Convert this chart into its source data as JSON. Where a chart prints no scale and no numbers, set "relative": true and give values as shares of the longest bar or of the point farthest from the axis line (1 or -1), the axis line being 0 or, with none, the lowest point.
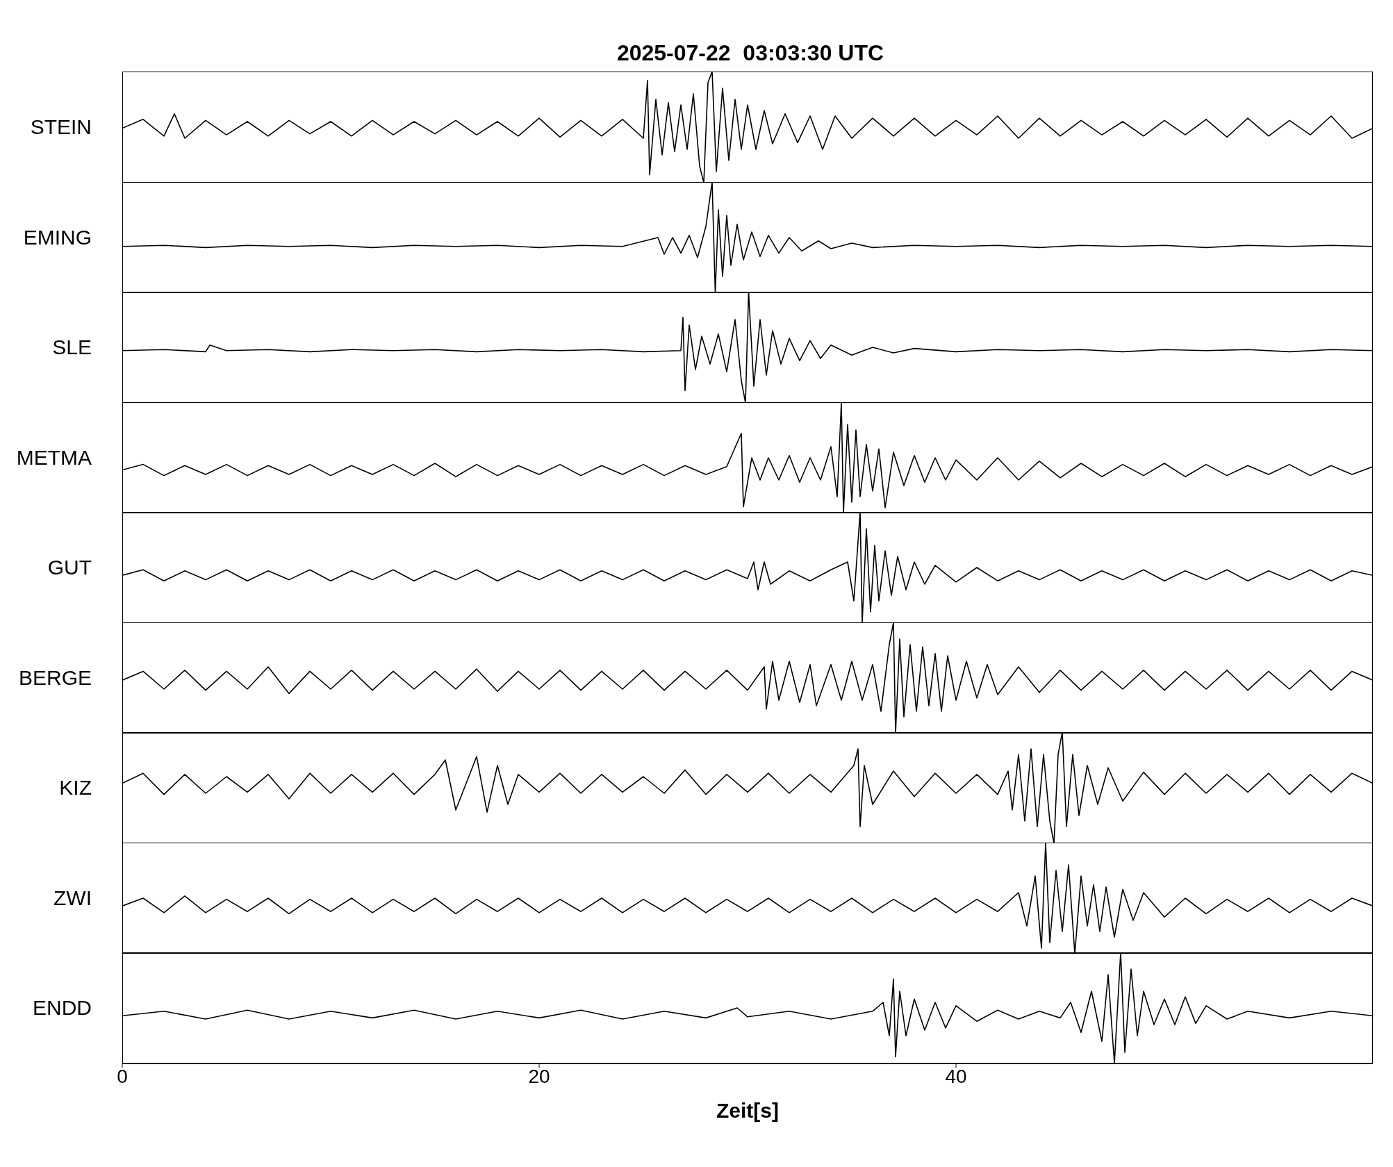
{
  "chart_data": [
    {
      "type": "line",
      "title": "2025-07-22  03:03:30 UTC",
      "ylabel": "STEIN",
      "relative": true,
      "color": "#000000",
      "xlim": [
        0,
        60
      ],
      "xticks": [
        0,
        20,
        40
      ],
      "tick_labels": false,
      "x": [
        0,
        1,
        2,
        2.5,
        3,
        4,
        5,
        6,
        7,
        8,
        9,
        10,
        11,
        12,
        13,
        14,
        15,
        16,
        17,
        18,
        19,
        20,
        21,
        22,
        23,
        24,
        25,
        25.2,
        25.3,
        25.6,
        25.9,
        26.2,
        26.5,
        26.8,
        27.1,
        27.4,
        27.7,
        27.9,
        28.1,
        28.3,
        28.5,
        28.8,
        29.1,
        29.4,
        29.7,
        30,
        30.4,
        30.8,
        31.2,
        31.8,
        32.4,
        33,
        33.6,
        34.2,
        35,
        36,
        37,
        38,
        39,
        40,
        41,
        42,
        43,
        44,
        45,
        46,
        47,
        48,
        49,
        50,
        51,
        52,
        53,
        54,
        55,
        56,
        57,
        58,
        59,
        60
      ],
      "values": [
        0.49,
        0.57,
        0.42,
        0.62,
        0.4,
        0.56,
        0.43,
        0.55,
        0.42,
        0.56,
        0.44,
        0.55,
        0.42,
        0.56,
        0.43,
        0.55,
        0.44,
        0.56,
        0.43,
        0.55,
        0.42,
        0.58,
        0.41,
        0.56,
        0.42,
        0.57,
        0.4,
        0.92,
        0.07,
        0.75,
        0.25,
        0.72,
        0.28,
        0.7,
        0.3,
        0.8,
        0.15,
        0,
        0.9,
        1,
        0.1,
        0.85,
        0.2,
        0.75,
        0.3,
        0.7,
        0.3,
        0.65,
        0.35,
        0.62,
        0.36,
        0.6,
        0.3,
        0.6,
        0.4,
        0.58,
        0.42,
        0.58,
        0.42,
        0.56,
        0.43,
        0.6,
        0.4,
        0.58,
        0.42,
        0.56,
        0.43,
        0.55,
        0.42,
        0.56,
        0.43,
        0.57,
        0.41,
        0.58,
        0.42,
        0.56,
        0.43,
        0.6,
        0.4,
        0.49
      ]
    },
    {
      "type": "line",
      "ylabel": "EMING",
      "relative": true,
      "color": "#000000",
      "xlim": [
        0,
        60
      ],
      "xticks": [
        0,
        20,
        40
      ],
      "tick_labels": false,
      "x": [
        0,
        2,
        4,
        6,
        8,
        10,
        12,
        14,
        16,
        18,
        20,
        22,
        24,
        25.7,
        26,
        26.4,
        26.8,
        27.2,
        27.6,
        28,
        28.3,
        28.45,
        28.6,
        28.8,
        29,
        29.2,
        29.5,
        29.8,
        30.2,
        30.6,
        31,
        31.5,
        32,
        32.6,
        33.4,
        34,
        35,
        36,
        38,
        40,
        42,
        44,
        46,
        48,
        50,
        52,
        54,
        56,
        58,
        60
      ],
      "values": [
        0.42,
        0.43,
        0.41,
        0.43,
        0.42,
        0.43,
        0.41,
        0.43,
        0.42,
        0.43,
        0.41,
        0.43,
        0.42,
        0.5,
        0.35,
        0.5,
        0.36,
        0.52,
        0.32,
        0.6,
        1,
        0,
        0.75,
        0.15,
        0.7,
        0.25,
        0.62,
        0.3,
        0.55,
        0.33,
        0.52,
        0.36,
        0.5,
        0.38,
        0.47,
        0.4,
        0.45,
        0.41,
        0.43,
        0.42,
        0.43,
        0.41,
        0.43,
        0.42,
        0.43,
        0.41,
        0.43,
        0.42,
        0.43,
        0.42
      ]
    },
    {
      "type": "line",
      "ylabel": "SLE",
      "relative": true,
      "color": "#000000",
      "xlim": [
        0,
        60
      ],
      "xticks": [
        0,
        20,
        40
      ],
      "tick_labels": false,
      "x": [
        0,
        2,
        4,
        4.2,
        5,
        7,
        9,
        11,
        13,
        15,
        17,
        19,
        21,
        23,
        25,
        26.8,
        26.9,
        27,
        27.2,
        27.5,
        27.8,
        28.2,
        28.6,
        29,
        29.4,
        29.7,
        29.9,
        30.05,
        30.3,
        30.6,
        30.9,
        31.2,
        31.6,
        32,
        32.5,
        33,
        33.5,
        34,
        35,
        36,
        37,
        38,
        40,
        42,
        44,
        46,
        48,
        50,
        52,
        54,
        56,
        58,
        60
      ],
      "values": [
        0.47,
        0.48,
        0.46,
        0.52,
        0.47,
        0.48,
        0.46,
        0.48,
        0.47,
        0.48,
        0.46,
        0.48,
        0.47,
        0.48,
        0.46,
        0.47,
        0.77,
        0.11,
        0.7,
        0.3,
        0.6,
        0.35,
        0.62,
        0.28,
        0.75,
        0.2,
        0,
        1,
        0.15,
        0.75,
        0.25,
        0.65,
        0.35,
        0.58,
        0.38,
        0.56,
        0.4,
        0.52,
        0.43,
        0.5,
        0.45,
        0.49,
        0.46,
        0.48,
        0.47,
        0.48,
        0.46,
        0.48,
        0.47,
        0.48,
        0.46,
        0.48,
        0.47
      ]
    },
    {
      "type": "line",
      "ylabel": "METMA",
      "relative": true,
      "color": "#000000",
      "xlim": [
        0,
        60
      ],
      "xticks": [
        0,
        20,
        40
      ],
      "tick_labels": false,
      "x": [
        0,
        1,
        2,
        3,
        4,
        5,
        6,
        7,
        8,
        9,
        10,
        11,
        12,
        13,
        14,
        15,
        16,
        17,
        18,
        19,
        20,
        21,
        22,
        23,
        24,
        25,
        26,
        27,
        28,
        29,
        29.7,
        29.8,
        30.2,
        30.6,
        31,
        31.5,
        32,
        32.5,
        33,
        33.5,
        34,
        34.3,
        34.5,
        34.6,
        34.8,
        35,
        35.2,
        35.4,
        35.7,
        36,
        36.3,
        36.6,
        37,
        37.5,
        38,
        38.5,
        39,
        39.5,
        40,
        41,
        42,
        43,
        44,
        45,
        46,
        47,
        48,
        49,
        50,
        51,
        52,
        53,
        54,
        55,
        56,
        57,
        58,
        59,
        60
      ],
      "values": [
        0.39,
        0.44,
        0.34,
        0.43,
        0.35,
        0.44,
        0.34,
        0.43,
        0.35,
        0.44,
        0.34,
        0.43,
        0.35,
        0.44,
        0.34,
        0.45,
        0.33,
        0.44,
        0.34,
        0.43,
        0.35,
        0.44,
        0.34,
        0.43,
        0.35,
        0.44,
        0.34,
        0.43,
        0.35,
        0.42,
        0.72,
        0.06,
        0.5,
        0.3,
        0.5,
        0.3,
        0.52,
        0.28,
        0.5,
        0.3,
        0.6,
        0.15,
        1,
        0,
        0.8,
        0.1,
        0.75,
        0.15,
        0.62,
        0.2,
        0.58,
        0.05,
        0.55,
        0.25,
        0.52,
        0.28,
        0.5,
        0.3,
        0.48,
        0.3,
        0.5,
        0.3,
        0.47,
        0.32,
        0.45,
        0.33,
        0.44,
        0.34,
        0.45,
        0.33,
        0.44,
        0.34,
        0.43,
        0.35,
        0.44,
        0.34,
        0.43,
        0.35,
        0.42
      ]
    },
    {
      "type": "line",
      "ylabel": "GUT",
      "relative": true,
      "color": "#000000",
      "xlim": [
        0,
        60
      ],
      "xticks": [
        0,
        20,
        40
      ],
      "tick_labels": false,
      "x": [
        0,
        1,
        2,
        3,
        4,
        5,
        6,
        7,
        8,
        9,
        10,
        11,
        12,
        13,
        14,
        15,
        16,
        17,
        18,
        19,
        20,
        21,
        22,
        23,
        24,
        25,
        26,
        27,
        28,
        29,
        30,
        30.3,
        30.5,
        30.8,
        31.1,
        32,
        33,
        34,
        34.8,
        35.1,
        35.4,
        35.5,
        35.7,
        35.9,
        36.1,
        36.3,
        36.6,
        36.9,
        37.2,
        37.6,
        38,
        38.5,
        39,
        40,
        41,
        42,
        43,
        44,
        45,
        46,
        47,
        48,
        49,
        50,
        51,
        52,
        53,
        54,
        55,
        56,
        57,
        58,
        59,
        60
      ],
      "values": [
        0.43,
        0.48,
        0.38,
        0.47,
        0.39,
        0.48,
        0.38,
        0.47,
        0.39,
        0.48,
        0.38,
        0.47,
        0.39,
        0.48,
        0.38,
        0.47,
        0.39,
        0.48,
        0.38,
        0.47,
        0.39,
        0.48,
        0.38,
        0.47,
        0.39,
        0.48,
        0.38,
        0.47,
        0.39,
        0.48,
        0.4,
        0.55,
        0.3,
        0.55,
        0.35,
        0.47,
        0.38,
        0.48,
        0.55,
        0.2,
        1,
        0,
        0.85,
        0.1,
        0.7,
        0.2,
        0.65,
        0.25,
        0.6,
        0.3,
        0.55,
        0.35,
        0.52,
        0.37,
        0.5,
        0.38,
        0.47,
        0.39,
        0.48,
        0.38,
        0.47,
        0.39,
        0.48,
        0.38,
        0.47,
        0.39,
        0.48,
        0.38,
        0.47,
        0.39,
        0.48,
        0.38,
        0.47,
        0.43
      ]
    },
    {
      "type": "line",
      "ylabel": "BERGE",
      "relative": true,
      "color": "#000000",
      "xlim": [
        0,
        60
      ],
      "xticks": [
        0,
        20,
        40
      ],
      "tick_labels": false,
      "x": [
        0,
        1,
        2,
        3,
        4,
        5,
        6,
        7,
        8,
        9,
        10,
        11,
        12,
        13,
        14,
        15,
        16,
        17,
        18,
        19,
        20,
        21,
        22,
        23,
        24,
        25,
        26,
        27,
        28,
        29,
        30,
        30.8,
        30.9,
        31.2,
        31.5,
        32,
        32.5,
        33,
        33.3,
        34,
        34.5,
        35,
        35.5,
        36,
        36.4,
        36.8,
        37,
        37.1,
        37.3,
        37.5,
        37.8,
        38.1,
        38.4,
        38.7,
        39,
        39.3,
        39.6,
        40,
        40.5,
        41,
        41.5,
        42,
        43,
        44,
        45,
        46,
        47,
        48,
        49,
        50,
        51,
        52,
        53,
        54,
        55,
        56,
        57,
        58,
        59,
        60
      ],
      "values": [
        0.48,
        0.56,
        0.4,
        0.57,
        0.39,
        0.56,
        0.4,
        0.6,
        0.36,
        0.56,
        0.4,
        0.57,
        0.39,
        0.56,
        0.4,
        0.56,
        0.4,
        0.58,
        0.38,
        0.56,
        0.4,
        0.57,
        0.39,
        0.56,
        0.4,
        0.57,
        0.39,
        0.56,
        0.4,
        0.57,
        0.39,
        0.6,
        0.22,
        0.65,
        0.3,
        0.65,
        0.28,
        0.62,
        0.25,
        0.62,
        0.3,
        0.65,
        0.3,
        0.62,
        0.2,
        0.8,
        1,
        0,
        0.85,
        0.15,
        0.8,
        0.2,
        0.78,
        0.25,
        0.72,
        0.2,
        0.7,
        0.3,
        0.65,
        0.32,
        0.62,
        0.35,
        0.6,
        0.37,
        0.57,
        0.39,
        0.56,
        0.4,
        0.57,
        0.39,
        0.56,
        0.4,
        0.57,
        0.39,
        0.56,
        0.4,
        0.57,
        0.39,
        0.56,
        0.48
      ]
    },
    {
      "type": "line",
      "ylabel": "KIZ",
      "relative": true,
      "color": "#000000",
      "xlim": [
        0,
        60
      ],
      "xticks": [
        0,
        20,
        40
      ],
      "tick_labels": false,
      "x": [
        0,
        1,
        2,
        3,
        4,
        5,
        6,
        7,
        8,
        9,
        10,
        11,
        12,
        13,
        14,
        15,
        15.5,
        16,
        17,
        17.5,
        18,
        18.5,
        19,
        20,
        21,
        22,
        23,
        24,
        25,
        26,
        27,
        28,
        29,
        30,
        31,
        32,
        33,
        34,
        35.1,
        35.3,
        35.4,
        35.6,
        36,
        37,
        38,
        39,
        40,
        41,
        42,
        42.5,
        42.7,
        43,
        43.3,
        43.6,
        43.9,
        44.2,
        44.5,
        44.7,
        44.9,
        45.1,
        45.3,
        45.6,
        45.9,
        46.3,
        46.8,
        47.3,
        48,
        49,
        50,
        51,
        52,
        53,
        54,
        55,
        56,
        57,
        58,
        59,
        60
      ],
      "values": [
        0.54,
        0.63,
        0.44,
        0.62,
        0.45,
        0.6,
        0.46,
        0.62,
        0.4,
        0.63,
        0.45,
        0.62,
        0.46,
        0.63,
        0.44,
        0.62,
        0.75,
        0.3,
        0.78,
        0.28,
        0.7,
        0.35,
        0.62,
        0.46,
        0.63,
        0.45,
        0.62,
        0.46,
        0.6,
        0.45,
        0.66,
        0.44,
        0.62,
        0.46,
        0.63,
        0.45,
        0.62,
        0.46,
        0.7,
        0.85,
        0.15,
        0.7,
        0.35,
        0.65,
        0.42,
        0.63,
        0.45,
        0.62,
        0.44,
        0.65,
        0.3,
        0.8,
        0.2,
        0.85,
        0.15,
        0.8,
        0.2,
        0,
        0.8,
        1,
        0.15,
        0.8,
        0.25,
        0.7,
        0.35,
        0.68,
        0.38,
        0.64,
        0.44,
        0.63,
        0.45,
        0.62,
        0.46,
        0.63,
        0.44,
        0.62,
        0.46,
        0.63,
        0.54
      ]
    },
    {
      "type": "line",
      "ylabel": "ZWI",
      "relative": true,
      "color": "#000000",
      "xlim": [
        0,
        60
      ],
      "xticks": [
        0,
        20,
        40
      ],
      "tick_labels": false,
      "x": [
        0,
        1,
        2,
        3,
        4,
        5,
        6,
        7,
        8,
        9,
        10,
        11,
        12,
        13,
        14,
        15,
        16,
        17,
        18,
        19,
        20,
        21,
        22,
        23,
        24,
        25,
        26,
        27,
        28,
        29,
        30,
        31,
        32,
        33,
        34,
        35,
        36,
        37,
        38,
        39,
        40,
        41,
        42,
        43,
        43.4,
        43.8,
        44.1,
        44.3,
        44.5,
        44.8,
        45.1,
        45.4,
        45.7,
        46,
        46.3,
        46.6,
        46.9,
        47.2,
        47.6,
        48,
        48.5,
        49,
        50,
        51,
        52,
        53,
        54,
        55,
        56,
        57,
        58,
        59,
        60
      ],
      "values": [
        0.43,
        0.5,
        0.37,
        0.52,
        0.37,
        0.49,
        0.38,
        0.5,
        0.36,
        0.49,
        0.38,
        0.5,
        0.37,
        0.49,
        0.38,
        0.5,
        0.36,
        0.49,
        0.38,
        0.5,
        0.37,
        0.49,
        0.38,
        0.5,
        0.37,
        0.49,
        0.38,
        0.5,
        0.37,
        0.49,
        0.38,
        0.5,
        0.37,
        0.49,
        0.38,
        0.5,
        0.37,
        0.49,
        0.38,
        0.5,
        0.37,
        0.49,
        0.38,
        0.55,
        0.25,
        0.7,
        0.05,
        1,
        0.1,
        0.75,
        0.2,
        0.8,
        0,
        0.7,
        0.25,
        0.62,
        0.2,
        0.6,
        0.15,
        0.58,
        0.3,
        0.55,
        0.33,
        0.5,
        0.36,
        0.49,
        0.38,
        0.5,
        0.37,
        0.49,
        0.38,
        0.5,
        0.43
      ]
    },
    {
      "type": "line",
      "ylabel": "ENDD",
      "relative": true,
      "color": "#000000",
      "xlim": [
        0,
        60
      ],
      "xticks": [
        0,
        20,
        40
      ],
      "xlabel": "Zeit[s]",
      "x": [
        0,
        2,
        4,
        6,
        8,
        10,
        12,
        14,
        16,
        18,
        20,
        22,
        24,
        26,
        28,
        29.5,
        30,
        32,
        34,
        36,
        36.5,
        36.8,
        37,
        37.1,
        37.3,
        37.6,
        38,
        38.5,
        39,
        39.5,
        40,
        41,
        42,
        43,
        44,
        45,
        45.5,
        46,
        46.5,
        47,
        47.3,
        47.6,
        47.9,
        48.1,
        48.4,
        48.7,
        49,
        49.5,
        50,
        50.5,
        51,
        51.5,
        52,
        53,
        54,
        56,
        58,
        60
      ],
      "values": [
        0.43,
        0.47,
        0.4,
        0.48,
        0.4,
        0.47,
        0.41,
        0.48,
        0.4,
        0.47,
        0.41,
        0.48,
        0.4,
        0.47,
        0.41,
        0.5,
        0.42,
        0.47,
        0.4,
        0.47,
        0.55,
        0.25,
        0.76,
        0.06,
        0.65,
        0.25,
        0.58,
        0.3,
        0.55,
        0.32,
        0.52,
        0.38,
        0.48,
        0.4,
        0.47,
        0.41,
        0.55,
        0.28,
        0.65,
        0.2,
        0.8,
        0,
        1,
        0.1,
        0.85,
        0.25,
        0.65,
        0.35,
        0.58,
        0.35,
        0.6,
        0.36,
        0.52,
        0.4,
        0.47,
        0.41,
        0.47,
        0.43
      ]
    }
  ]
}
